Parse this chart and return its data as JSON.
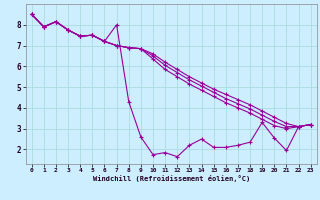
{
  "xlabel": "Windchill (Refroidissement éolien,°C)",
  "bg_color": "#cceeff",
  "grid_color": "#aadddd",
  "line_color": "#990099",
  "xlim": [
    -0.5,
    23.5
  ],
  "ylim": [
    1.3,
    9.0
  ],
  "xticks": [
    0,
    1,
    2,
    3,
    4,
    5,
    6,
    7,
    8,
    9,
    10,
    11,
    12,
    13,
    14,
    15,
    16,
    17,
    18,
    19,
    20,
    21,
    22,
    23
  ],
  "yticks": [
    2,
    3,
    4,
    5,
    6,
    7,
    8
  ],
  "series": [
    [
      8.5,
      7.9,
      8.15,
      7.75,
      7.45,
      7.5,
      7.2,
      8.0,
      4.3,
      2.6,
      1.75,
      1.85,
      1.65,
      2.2,
      2.5,
      2.1,
      2.1,
      2.2,
      2.35,
      3.3,
      2.55,
      1.95,
      3.1,
      3.2
    ],
    [
      8.5,
      7.9,
      8.15,
      7.75,
      7.45,
      7.5,
      7.2,
      7.0,
      6.9,
      6.85,
      6.6,
      6.2,
      5.85,
      5.5,
      5.2,
      4.9,
      4.65,
      4.4,
      4.15,
      3.85,
      3.55,
      3.25,
      3.1,
      3.2
    ],
    [
      8.5,
      7.9,
      8.15,
      7.75,
      7.45,
      7.5,
      7.2,
      7.0,
      6.9,
      6.85,
      6.5,
      6.05,
      5.7,
      5.35,
      5.05,
      4.75,
      4.45,
      4.2,
      3.95,
      3.65,
      3.35,
      3.1,
      3.1,
      3.2
    ],
    [
      8.5,
      7.9,
      8.15,
      7.75,
      7.45,
      7.5,
      7.2,
      7.0,
      6.9,
      6.85,
      6.35,
      5.85,
      5.5,
      5.15,
      4.85,
      4.55,
      4.25,
      4.0,
      3.75,
      3.45,
      3.15,
      3.0,
      3.1,
      3.2
    ]
  ]
}
